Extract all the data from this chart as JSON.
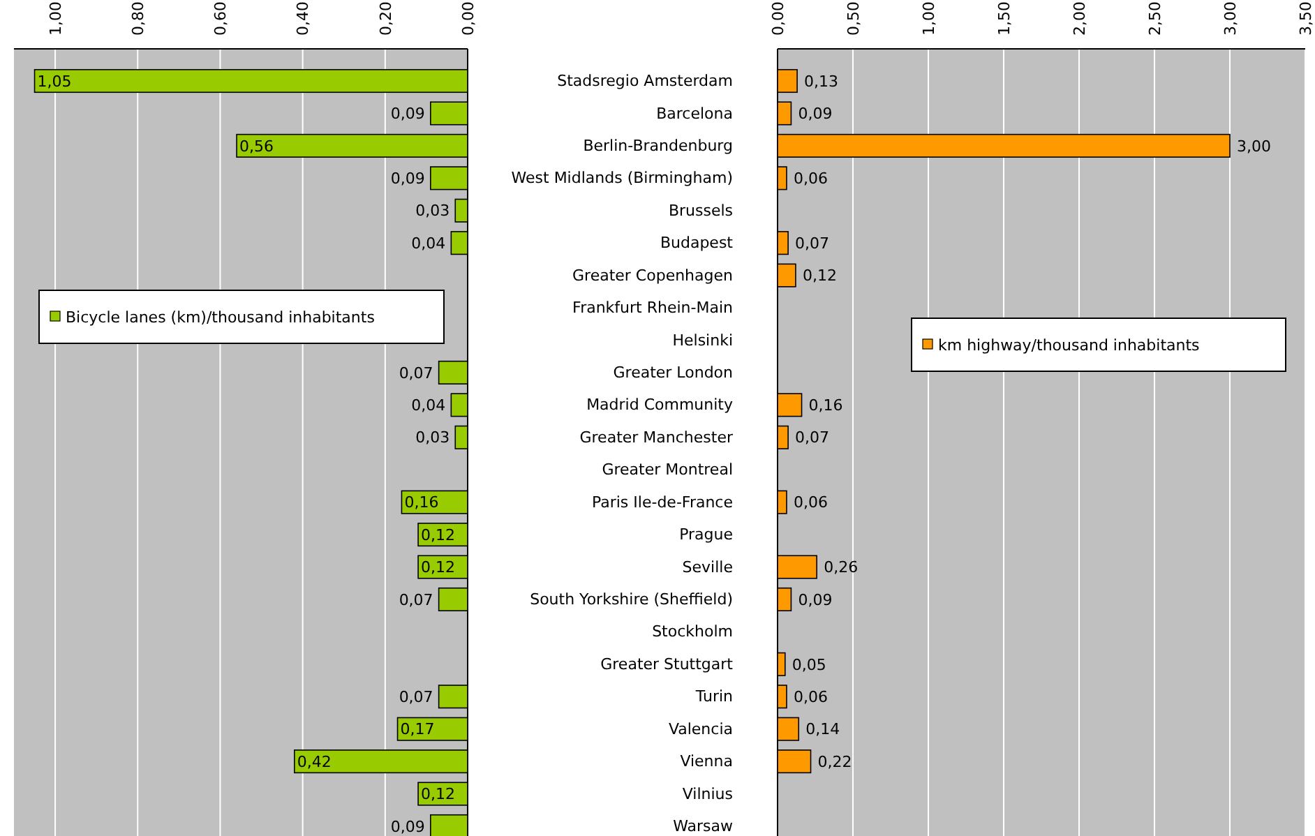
{
  "chart_data": [
    {
      "type": "bar",
      "orientation": "horizontal",
      "tick_labels": "x",
      "grid": "x",
      "legend": "left",
      "categories": [
        null,
        null,
        null,
        null,
        null,
        null,
        null,
        null,
        null,
        null,
        null,
        null,
        null,
        null,
        null,
        null,
        null,
        null,
        null,
        null,
        null,
        null,
        null,
        null
      ],
      "xlim": [
        1.1,
        0
      ],
      "xticks": [
        {
          "value": 1,
          "label": "1,00"
        },
        {
          "value": 0.8,
          "label": "0,80"
        },
        {
          "value": 0.6,
          "label": "0,60"
        },
        {
          "value": 0.4,
          "label": "0,40"
        },
        {
          "value": 0.2,
          "label": "0,20"
        },
        {
          "value": 0,
          "label": "0,00"
        }
      ],
      "series": [
        {
          "name": "Bicycle lanes (km)/thousand inhabitants",
          "color": "#99cc00",
          "values": [
            1.05,
            0.09,
            0.56,
            0.09,
            0.03,
            0.04,
            null,
            null,
            null,
            0.07,
            0.04,
            0.03,
            null,
            0.16,
            0.12,
            0.12,
            0.07,
            null,
            null,
            0.07,
            0.17,
            0.42,
            0.12,
            0.09
          ],
          "value_labels": [
            "1,05",
            "0,09",
            "0,56",
            "0,09",
            "0,03",
            "0,04",
            null,
            null,
            null,
            "0,07",
            "0,04",
            "0,03",
            null,
            "0,16",
            "0,12",
            "0,12",
            "0,07",
            null,
            null,
            "0,07",
            "0,17",
            "0,42",
            "0,12",
            "0,09"
          ]
        }
      ]
    },
    {
      "type": "bar",
      "orientation": "horizontal",
      "grid": "x",
      "legend": "right",
      "categories": [
        "Stadsregio Amsterdam",
        "Barcelona",
        "Berlin-Brandenburg",
        "West Midlands (Birmingham)",
        "Brussels",
        "Budapest",
        "Greater Copenhagen",
        "Frankfurt Rhein-Main",
        "Helsinki",
        "Greater London",
        "Madrid Community",
        "Greater Manchester",
        "Greater Montreal",
        "Paris Ile-de-France",
        "Prague",
        "Seville",
        "South Yorkshire (Sheffield)",
        "Stockholm",
        "Greater Stuttgart",
        "Turin",
        "Valencia",
        "Vienna",
        "Vilnius",
        "Warsaw"
      ],
      "xlim": [
        0,
        3.5
      ],
      "xticks": [
        {
          "value": 0,
          "label": "0,00"
        },
        {
          "value": 0.5,
          "label": "0,50"
        },
        {
          "value": 1,
          "label": "1,00"
        },
        {
          "value": 1.5,
          "label": "1,50"
        },
        {
          "value": 2,
          "label": "2,00"
        },
        {
          "value": 2.5,
          "label": "2,50"
        },
        {
          "value": 3,
          "label": "3,00"
        },
        {
          "value": 3.5,
          "label": "3,50"
        }
      ],
      "series": [
        {
          "name": "km highway/thousand inhabitants",
          "color": "#ff9900",
          "values": [
            0.13,
            0.09,
            3.0,
            0.06,
            null,
            0.07,
            0.12,
            null,
            null,
            null,
            0.16,
            0.07,
            null,
            0.06,
            null,
            0.26,
            0.09,
            null,
            0.05,
            0.06,
            0.14,
            0.22,
            null,
            null
          ],
          "value_labels": [
            "0,13",
            "0,09",
            "3,00",
            "0,06",
            null,
            "0,07",
            "0,12",
            null,
            null,
            null,
            "0,16",
            "0,07",
            null,
            "0,06",
            null,
            "0,26",
            "0,09",
            null,
            "0,05",
            "0,06",
            "0,14",
            "0,22",
            null,
            null
          ]
        }
      ]
    }
  ]
}
